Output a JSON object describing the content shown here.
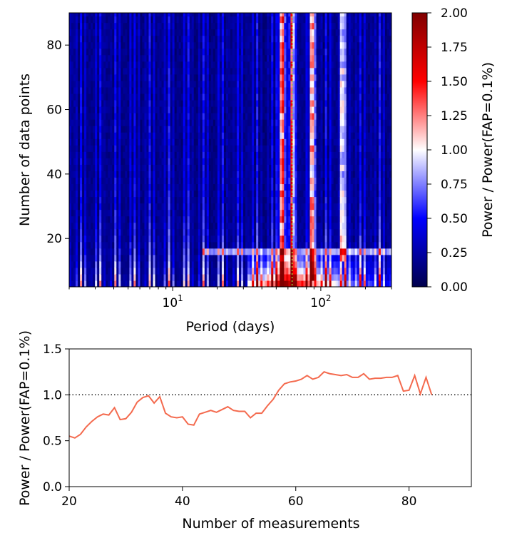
{
  "chart_data": [
    {
      "type": "heatmap",
      "xlabel": "Period (days)",
      "ylabel": "Number of data points",
      "x_scale": "log",
      "xlim": [
        2,
        300
      ],
      "ylim": [
        5,
        90
      ],
      "x_ticks": [
        {
          "value": 10,
          "base": "10",
          "exp": "1"
        },
        {
          "value": 100,
          "base": "10",
          "exp": "2"
        }
      ],
      "y_ticks": [
        20,
        40,
        60,
        80
      ],
      "dotted_line_period": 64,
      "colorbar": {
        "label": "Power / Power(FAP=0.1%)",
        "range": [
          0,
          2
        ],
        "ticks": [
          "0.00",
          "0.25",
          "0.50",
          "0.75",
          "1.00",
          "1.25",
          "1.50",
          "1.75",
          "2.00"
        ],
        "colors": [
          "#00004c",
          "#0000ff",
          "#ffffff",
          "#ff0000",
          "#800000"
        ]
      },
      "peaks": [
        {
          "period": 55,
          "strength": 1.6,
          "from_n": 5
        },
        {
          "period": 64,
          "strength": 1.2,
          "from_n": 5
        },
        {
          "period": 88,
          "strength": 1.3,
          "from_n": 8
        },
        {
          "period": 140,
          "strength": 0.95,
          "from_n": 14
        }
      ]
    },
    {
      "type": "line",
      "xlabel": "Number of measurements",
      "ylabel": "Power / Power(FAP=0.1%)",
      "xlim": [
        20,
        91
      ],
      "ylim": [
        0,
        1.5
      ],
      "x_ticks": [
        20,
        40,
        60,
        80
      ],
      "y_ticks": [
        "0.0",
        "0.5",
        "1.0",
        "1.5"
      ],
      "reference_line": 1.0,
      "color": "#f46a4e",
      "x": [
        20,
        21,
        22,
        23,
        24,
        25,
        26,
        27,
        28,
        29,
        30,
        31,
        32,
        33,
        34,
        35,
        36,
        37,
        38,
        39,
        40,
        41,
        42,
        43,
        44,
        45,
        46,
        47,
        48,
        49,
        50,
        51,
        52,
        53,
        54,
        55,
        56,
        57,
        58,
        59,
        60,
        61,
        62,
        63,
        64,
        65,
        66,
        67,
        68,
        69,
        70,
        71,
        72,
        73,
        74,
        75,
        76,
        77,
        78,
        79,
        80,
        81,
        82,
        83,
        84
      ],
      "y": [
        0.55,
        0.53,
        0.57,
        0.65,
        0.71,
        0.76,
        0.79,
        0.78,
        0.86,
        0.73,
        0.74,
        0.81,
        0.92,
        0.97,
        0.99,
        0.91,
        0.98,
        0.8,
        0.76,
        0.75,
        0.76,
        0.68,
        0.67,
        0.79,
        0.81,
        0.83,
        0.81,
        0.84,
        0.87,
        0.83,
        0.82,
        0.82,
        0.75,
        0.8,
        0.8,
        0.88,
        0.95,
        1.05,
        1.12,
        1.14,
        1.15,
        1.17,
        1.21,
        1.17,
        1.19,
        1.25,
        1.23,
        1.22,
        1.21,
        1.22,
        1.19,
        1.19,
        1.23,
        1.17,
        1.18,
        1.18,
        1.19,
        1.19,
        1.21,
        1.04,
        1.05,
        1.21,
        1.01,
        1.19,
        1.0
      ]
    }
  ]
}
